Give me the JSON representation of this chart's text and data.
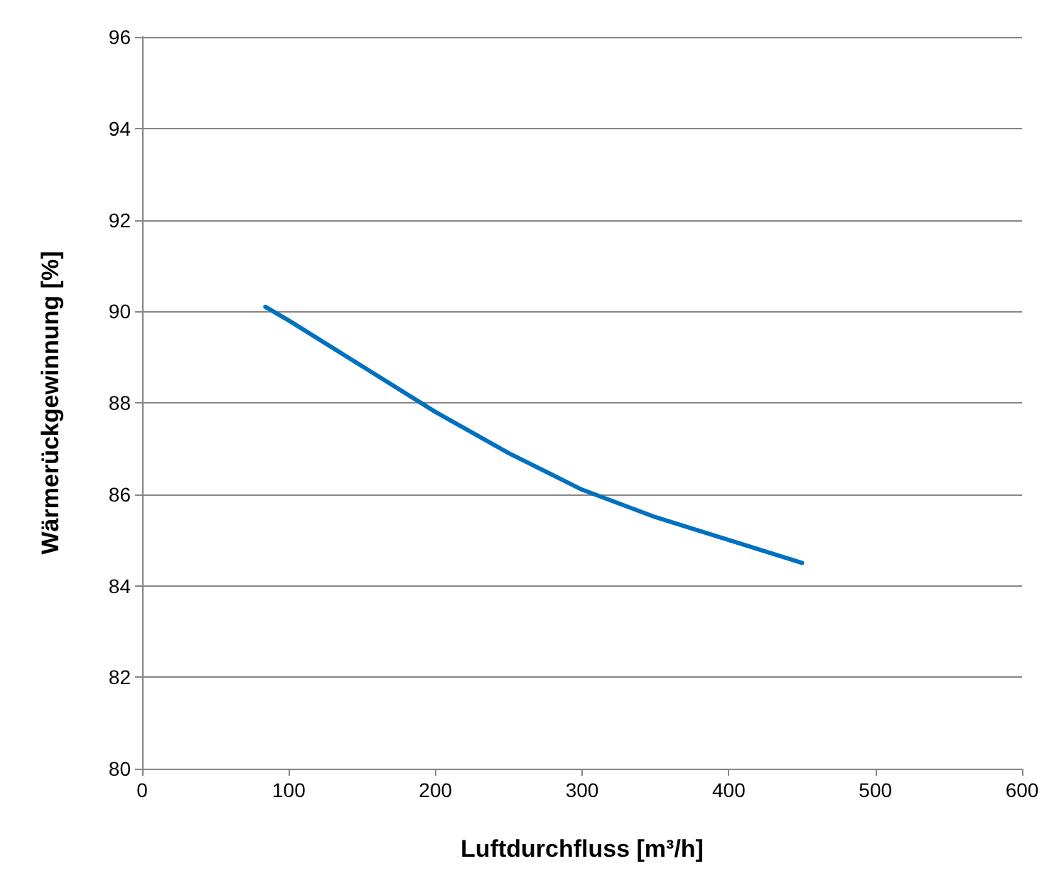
{
  "chart_data": {
    "type": "line",
    "xlabel": "Luftdurchfluss [m³/h]",
    "ylabel": "Wärmerückgewinnung [%]",
    "x": [
      84,
      100,
      150,
      200,
      250,
      300,
      350,
      400,
      450
    ],
    "series": [
      {
        "color": "#0070c0",
        "values": [
          90.1,
          89.8,
          88.8,
          87.8,
          86.9,
          86.1,
          85.5,
          85.0,
          84.5
        ]
      }
    ],
    "xlim": [
      0,
      600
    ],
    "xticks": [
      0,
      100,
      200,
      300,
      400,
      500,
      600
    ],
    "ylim": [
      80,
      96
    ],
    "yticks": [
      80,
      82,
      84,
      86,
      88,
      90,
      92,
      94,
      96
    ],
    "grid": "y",
    "marker": "none",
    "line_style": "solid"
  }
}
